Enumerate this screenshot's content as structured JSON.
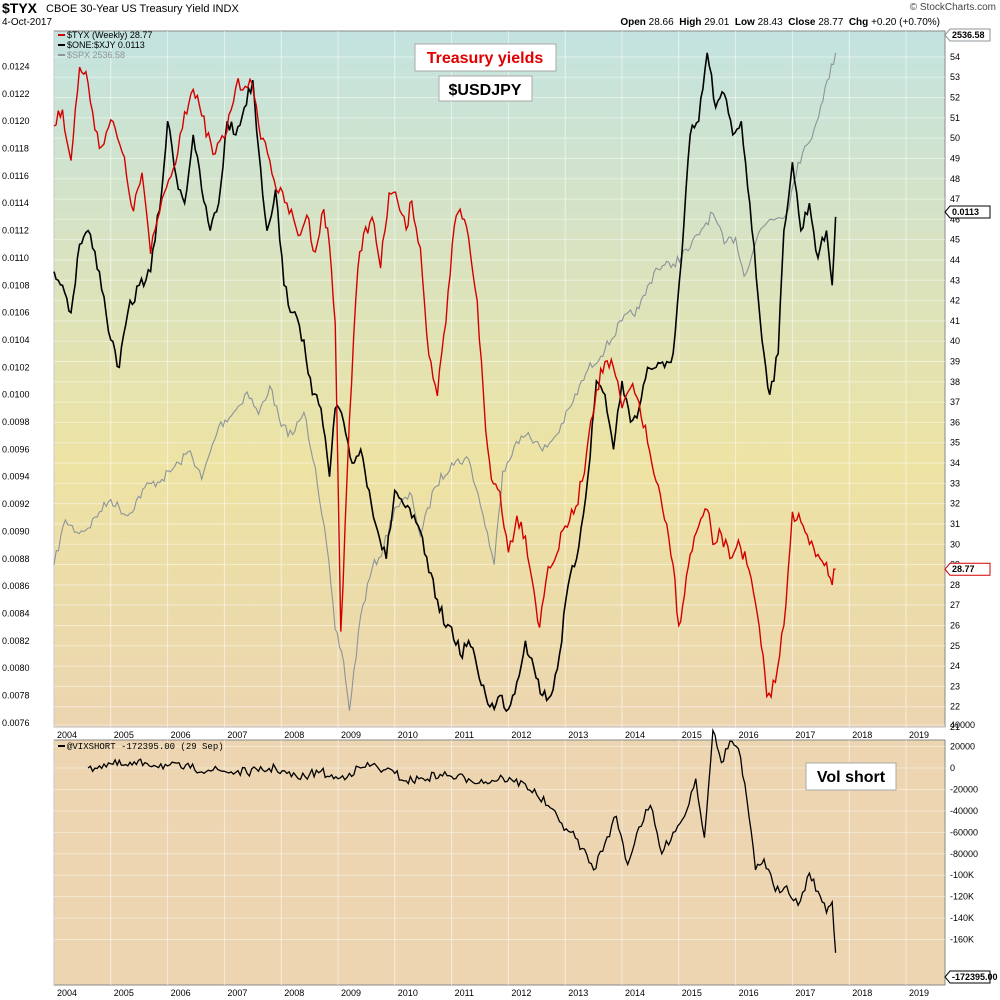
{
  "header": {
    "symbol": "$TYX",
    "name": "CBOE 30-Year US Treasury Yield INDX",
    "date": "4-Oct-2017",
    "brand": "© StockCharts.com",
    "ohlc": [
      {
        "label": "Open",
        "value": "28.66"
      },
      {
        "label": "High",
        "value": "29.01"
      },
      {
        "label": "Low",
        "value": "28.43"
      },
      {
        "label": "Close",
        "value": "28.77"
      },
      {
        "label": "Chg",
        "value": "+0.20 (+0.70%)"
      }
    ]
  },
  "annotations": {
    "treasury": "Treasury yields",
    "usdjpy": "$USDJPY",
    "volshort": "Vol short"
  },
  "colors": {
    "tyx": "#d40000",
    "usdjpy": "#000000",
    "spx": "#8c9499",
    "vix": "#000000",
    "bgTop": "#c3e3e0",
    "bgMid": "#ede3a3",
    "bgBottom": "#ecd5b0"
  },
  "chart_data": [
    {
      "type": "line",
      "x_unit": "year",
      "legend": [
        "$TYX (Weekly) 28.77",
        "$ONE:$XJY 0.0113",
        "$SPX 2536.58"
      ],
      "left_axis": {
        "ticks": [
          "0.0124",
          "0.0122",
          "0.0120",
          "0.0118",
          "0.0116",
          "0.0114",
          "0.0112",
          "0.0110",
          "0.0108",
          "0.0106",
          "0.0104",
          "0.0102",
          "0.0100",
          "0.0098",
          "0.0096",
          "0.0094",
          "0.0092",
          "0.0090",
          "0.0088",
          "0.0086",
          "0.0084",
          "0.0082",
          "0.0080",
          "0.0078",
          "0.0076"
        ]
      },
      "right_axis": {
        "ticks": [
          "54",
          "53",
          "52",
          "51",
          "50",
          "49",
          "48",
          "47",
          "46",
          "45",
          "44",
          "43",
          "42",
          "41",
          "40",
          "39",
          "38",
          "37",
          "36",
          "35",
          "34",
          "33",
          "32",
          "31",
          "30",
          "29",
          "28",
          "27",
          "26",
          "25",
          "24",
          "23",
          "22",
          "21"
        ]
      },
      "x_ticks": [
        "2004",
        "2005",
        "2006",
        "2007",
        "2008",
        "2009",
        "2010",
        "2011",
        "2012",
        "2013",
        "2014",
        "2015",
        "2016",
        "2017",
        "2018",
        "2019"
      ],
      "last_values": [
        "2536.58",
        "0.0113",
        "28.77"
      ],
      "series": [
        {
          "name": "$TYX (Weekly) 28.77",
          "axis": "right",
          "x": [
            2004.0,
            2004.15,
            2004.3,
            2004.45,
            2004.6,
            2004.8,
            2005.0,
            2005.2,
            2005.4,
            2005.55,
            2005.7,
            2005.9,
            2006.1,
            2006.3,
            2006.45,
            2006.6,
            2006.8,
            2007.0,
            2007.2,
            2007.45,
            2007.6,
            2007.8,
            2007.95,
            2008.1,
            2008.3,
            2008.45,
            2008.6,
            2008.75,
            2008.85,
            2008.95,
            2009.05,
            2009.2,
            2009.35,
            2009.45,
            2009.6,
            2009.75,
            2009.9,
            2010.05,
            2010.2,
            2010.3,
            2010.45,
            2010.6,
            2010.75,
            2010.9,
            2011.05,
            2011.15,
            2011.3,
            2011.45,
            2011.6,
            2011.7,
            2011.85,
            2012.0,
            2012.15,
            2012.3,
            2012.45,
            2012.55,
            2012.7,
            2012.85,
            2013.0,
            2013.15,
            2013.3,
            2013.45,
            2013.55,
            2013.7,
            2013.85,
            2014.0,
            2014.15,
            2014.3,
            2014.45,
            2014.6,
            2014.75,
            2014.9,
            2015.0,
            2015.1,
            2015.2,
            2015.35,
            2015.5,
            2015.6,
            2015.75,
            2015.9,
            2016.05,
            2016.2,
            2016.35,
            2016.45,
            2016.55,
            2016.7,
            2016.85,
            2017.0,
            2017.15,
            2017.3,
            2017.45,
            2017.6,
            2017.7,
            2017.76
          ],
          "values": [
            50.6,
            51.4,
            48.9,
            53.5,
            52.7,
            49.5,
            50.9,
            49.3,
            46.4,
            48.3,
            44.3,
            47.0,
            48.5,
            51.3,
            52.4,
            51.1,
            49.2,
            50.0,
            52.5,
            52.9,
            50.7,
            48.9,
            47.3,
            46.8,
            45.2,
            46.2,
            44.4,
            46.5,
            44.7,
            40.9,
            25.7,
            36.1,
            43.6,
            45.3,
            46.1,
            43.6,
            47.3,
            46.9,
            45.5,
            46.9,
            44.6,
            39.3,
            37.3,
            40.9,
            45.7,
            46.5,
            45.1,
            42.0,
            35.6,
            33.2,
            32.6,
            29.6,
            31.4,
            30.4,
            27.7,
            25.9,
            28.9,
            29.5,
            30.9,
            31.5,
            33.1,
            36.1,
            37.6,
            39.0,
            38.7,
            36.7,
            37.7,
            37.0,
            35.0,
            33.1,
            31.2,
            29.0,
            26.0,
            27.5,
            29.5,
            30.9,
            31.7,
            30.0,
            30.5,
            29.3,
            30.2,
            29.0,
            27.1,
            25.0,
            22.5,
            23.2,
            26.0,
            31.6,
            31.1,
            30.0,
            29.5,
            29.1,
            28.0,
            28.77
          ]
        },
        {
          "name": "$ONE:$XJY 0.0113",
          "axis": "left",
          "x": [
            2004.0,
            2004.15,
            2004.3,
            2004.45,
            2004.6,
            2004.8,
            2005.0,
            2005.15,
            2005.3,
            2005.5,
            2005.7,
            2005.9,
            2006.0,
            2006.15,
            2006.3,
            2006.45,
            2006.6,
            2006.75,
            2006.9,
            2007.05,
            2007.2,
            2007.35,
            2007.5,
            2007.6,
            2007.75,
            2007.9,
            2008.05,
            2008.2,
            2008.4,
            2008.55,
            2008.7,
            2008.85,
            2008.95,
            2009.1,
            2009.25,
            2009.4,
            2009.55,
            2009.7,
            2009.85,
            2010.0,
            2010.15,
            2010.3,
            2010.45,
            2010.6,
            2010.75,
            2010.9,
            2011.0,
            2011.15,
            2011.3,
            2011.45,
            2011.6,
            2011.75,
            2011.85,
            2012.0,
            2012.15,
            2012.3,
            2012.45,
            2012.6,
            2012.75,
            2012.9,
            2013.05,
            2013.2,
            2013.4,
            2013.55,
            2013.7,
            2013.85,
            2014.0,
            2014.15,
            2014.3,
            2014.45,
            2014.6,
            2014.75,
            2014.9,
            2015.05,
            2015.2,
            2015.35,
            2015.5,
            2015.65,
            2015.8,
            2015.95,
            2016.1,
            2016.25,
            2016.4,
            2016.5,
            2016.6,
            2016.75,
            2016.85,
            2017.0,
            2017.15,
            2017.3,
            2017.45,
            2017.6,
            2017.7,
            2017.76
          ],
          "values": [
            0.0109,
            0.0108,
            0.0106,
            0.0111,
            0.0112,
            0.0109,
            0.0104,
            0.0102,
            0.0106,
            0.0108,
            0.0109,
            0.0115,
            0.012,
            0.0116,
            0.0114,
            0.0119,
            0.0115,
            0.0112,
            0.0114,
            0.012,
            0.0119,
            0.0121,
            0.0123,
            0.0118,
            0.0112,
            0.0115,
            0.0108,
            0.0106,
            0.0104,
            0.01,
            0.0099,
            0.0094,
            0.0099,
            0.0098,
            0.0095,
            0.0096,
            0.0093,
            0.009,
            0.0088,
            0.0093,
            0.0092,
            0.0091,
            0.009,
            0.0087,
            0.0085,
            0.0083,
            0.0083,
            0.0081,
            0.0082,
            0.008,
            0.0078,
            0.0077,
            0.0078,
            0.0077,
            0.0079,
            0.0082,
            0.008,
            0.0078,
            0.0078,
            0.0081,
            0.0086,
            0.0088,
            0.0094,
            0.0101,
            0.01,
            0.0096,
            0.0101,
            0.0098,
            0.0099,
            0.0102,
            0.0102,
            0.0102,
            0.0103,
            0.011,
            0.0119,
            0.012,
            0.0125,
            0.0121,
            0.0122,
            0.0119,
            0.012,
            0.0114,
            0.0107,
            0.0103,
            0.01,
            0.0103,
            0.0112,
            0.0117,
            0.0112,
            0.0114,
            0.011,
            0.0112,
            0.0108,
            0.0113
          ]
        },
        {
          "name": "$SPX 2536.58",
          "axis": "hidden",
          "x": [
            2004.0,
            2004.2,
            2004.4,
            2004.6,
            2004.8,
            2005.0,
            2005.3,
            2005.6,
            2005.9,
            2006.2,
            2006.4,
            2006.6,
            2006.9,
            2007.2,
            2007.4,
            2007.6,
            2007.8,
            2008.0,
            2008.2,
            2008.4,
            2008.6,
            2008.8,
            2008.95,
            2009.1,
            2009.2,
            2009.4,
            2009.6,
            2009.8,
            2010.0,
            2010.3,
            2010.45,
            2010.7,
            2011.0,
            2011.3,
            2011.55,
            2011.75,
            2011.9,
            2012.1,
            2012.35,
            2012.6,
            2012.85,
            2013.1,
            2013.4,
            2013.7,
            2014.0,
            2014.3,
            2014.6,
            2014.9,
            2015.2,
            2015.4,
            2015.6,
            2015.8,
            2016.0,
            2016.15,
            2016.4,
            2016.6,
            2016.9,
            2017.1,
            2017.3,
            2017.5,
            2017.76
          ],
          "values": [
            29.0,
            31.2,
            30.6,
            30.8,
            31.6,
            32.2,
            31.4,
            32.8,
            33.2,
            34.0,
            34.6,
            33.2,
            35.8,
            36.6,
            37.5,
            36.4,
            37.8,
            35.8,
            35.4,
            36.5,
            33.8,
            30.0,
            25.8,
            24.2,
            21.8,
            26.5,
            28.8,
            29.8,
            31.8,
            32.4,
            30.4,
            32.8,
            34.0,
            34.2,
            31.5,
            29.0,
            33.6,
            34.8,
            35.5,
            34.6,
            35.4,
            36.8,
            38.6,
            39.6,
            41.0,
            41.6,
            43.6,
            43.8,
            44.6,
            45.5,
            46.3,
            44.8,
            45.1,
            43.2,
            45.3,
            46.0,
            46.3,
            48.8,
            49.8,
            51.6,
            54.2
          ]
        }
      ]
    },
    {
      "type": "line",
      "legend": [
        "@VIXSHORT -172395.00 (29 Sep)"
      ],
      "y_ticks": [
        "40000",
        "20000",
        "0",
        "-20000",
        "-40000",
        "-60000",
        "-80000",
        "-100K",
        "-120K",
        "-140K",
        "-160K"
      ],
      "last_value": "-172395.00",
      "x_ticks": [
        "2004",
        "2005",
        "2006",
        "2007",
        "2008",
        "2009",
        "2010",
        "2011",
        "2012",
        "2013",
        "2014",
        "2015",
        "2016",
        "2017",
        "2018",
        "2019"
      ],
      "series": [
        {
          "name": "@VIXSHORT -172395.00 (29 Sep)",
          "x": [
            2004.6,
            2004.8,
            2005.0,
            2005.3,
            2005.6,
            2006.0,
            2006.4,
            2006.8,
            2007.2,
            2007.6,
            2007.9,
            2008.1,
            2008.3,
            2008.5,
            2008.7,
            2008.85,
            2009.0,
            2009.2,
            2009.4,
            2009.6,
            2009.8,
            2010.0,
            2010.2,
            2010.5,
            2010.8,
            2011.0,
            2011.3,
            2011.6,
            2011.9,
            2012.1,
            2012.3,
            2012.5,
            2012.7,
            2012.9,
            2013.1,
            2013.3,
            2013.5,
            2013.7,
            2013.9,
            2014.1,
            2014.3,
            2014.5,
            2014.7,
            2014.9,
            2015.1,
            2015.3,
            2015.45,
            2015.6,
            2015.75,
            2015.9,
            2016.05,
            2016.2,
            2016.35,
            2016.5,
            2016.7,
            2016.9,
            2017.1,
            2017.3,
            2017.45,
            2017.6,
            2017.7,
            2017.76
          ],
          "values": [
            0,
            2000,
            4000,
            2000,
            5000,
            2000,
            0,
            -2000,
            -4000,
            -3000,
            0,
            -5000,
            -10000,
            -6000,
            -3000,
            -8000,
            -10000,
            -5000,
            0,
            3000,
            -2000,
            -5000,
            -12000,
            -10000,
            -6000,
            -8000,
            -10000,
            -13000,
            -9000,
            -13000,
            -15000,
            -25000,
            -35000,
            -50000,
            -60000,
            -75000,
            -95000,
            -70000,
            -45000,
            -90000,
            -55000,
            -35000,
            -80000,
            -60000,
            -45000,
            -10000,
            -65000,
            35000,
            5000,
            25000,
            18000,
            -30000,
            -95000,
            -85000,
            -115000,
            -110000,
            -128000,
            -98000,
            -115000,
            -135000,
            -125000,
            -172395
          ]
        }
      ]
    }
  ]
}
